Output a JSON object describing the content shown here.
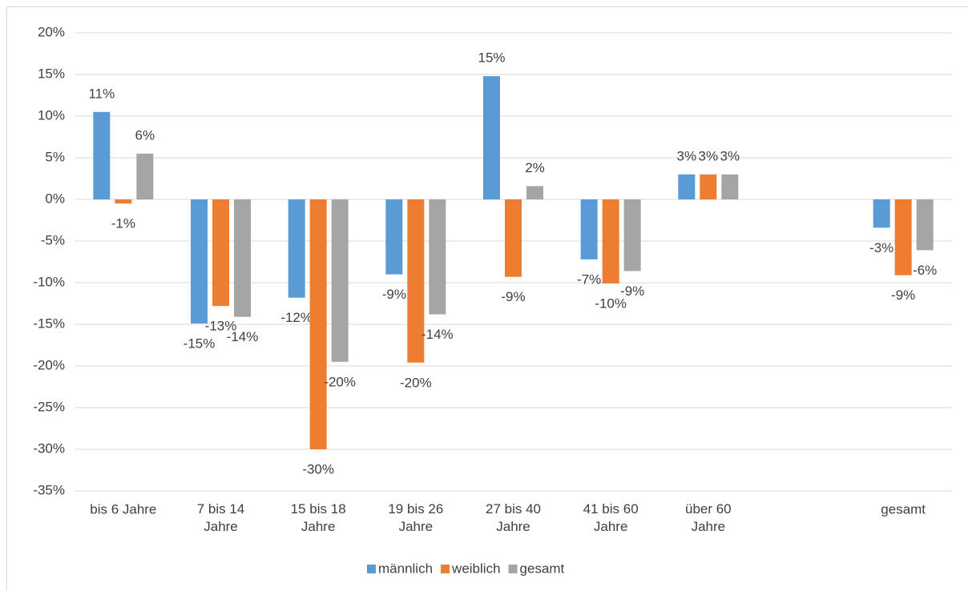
{
  "chart_data": {
    "type": "bar",
    "categories": [
      "bis 6 Jahre",
      "7 bis 14 Jahre",
      "15 bis 18 Jahre",
      "19 bis 26 Jahre",
      "27 bis 40 Jahre",
      "41 bis 60 Jahre",
      "über 60 Jahre",
      null,
      "gesamt"
    ],
    "series": [
      {
        "name": "männlich",
        "color": "#5b9bd5",
        "values": [
          10.5,
          -14.9,
          -11.8,
          -9,
          14.8,
          -7.2,
          3,
          null,
          -3.4
        ],
        "value_labels": [
          "11%",
          "-15%",
          "-12%",
          "-9%",
          "15%",
          "-7%",
          "3%",
          null,
          "-3%"
        ]
      },
      {
        "name": "weiblich",
        "color": "#ed7d31",
        "values": [
          -0.5,
          -12.8,
          -30,
          -19.6,
          -9.3,
          -10.1,
          3,
          null,
          -9.1
        ],
        "value_labels": [
          "-1%",
          "-13%",
          "-30%",
          "-20%",
          "-9%",
          "-10%",
          "3%",
          null,
          "-9%"
        ]
      },
      {
        "name": "gesamt",
        "color": "#a5a5a5",
        "values": [
          5.5,
          -14.1,
          -19.5,
          -13.8,
          1.6,
          -8.6,
          3,
          null,
          -6.1
        ],
        "value_labels": [
          "6%",
          "-14%",
          "-20%",
          "-14%",
          "2%",
          "-9%",
          "3%",
          null,
          "-6%"
        ]
      }
    ],
    "ylim": [
      -35,
      20
    ],
    "yticks": [
      {
        "value": -35,
        "label": "-35%"
      },
      {
        "value": -30,
        "label": "-30%"
      },
      {
        "value": -25,
        "label": "-25%"
      },
      {
        "value": -20,
        "label": "-20%"
      },
      {
        "value": -15,
        "label": "-15%"
      },
      {
        "value": -10,
        "label": "-10%"
      },
      {
        "value": -5,
        "label": "-5%"
      },
      {
        "value": 0,
        "label": "0%"
      },
      {
        "value": 5,
        "label": "5%"
      },
      {
        "value": 10,
        "label": "10%"
      },
      {
        "value": 15,
        "label": "15%"
      },
      {
        "value": 20,
        "label": "20%"
      }
    ],
    "grid": true,
    "legend": "bottom"
  }
}
